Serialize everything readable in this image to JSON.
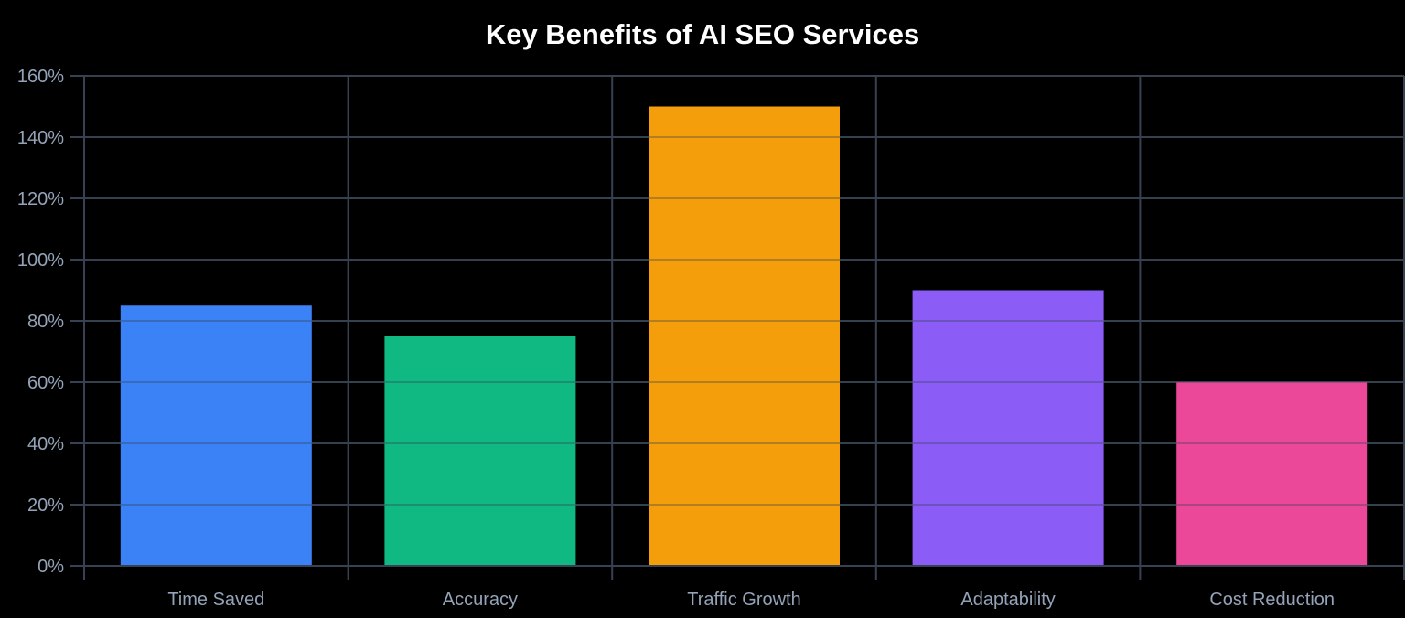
{
  "chart_data": {
    "type": "bar",
    "title": "Key Benefits of AI SEO Services",
    "categories": [
      "Time Saved",
      "Accuracy",
      "Traffic Growth",
      "Adaptability",
      "Cost Reduction"
    ],
    "values": [
      85,
      75,
      150,
      90,
      60
    ],
    "colors": [
      "#3b82f6",
      "#10b981",
      "#f59e0b",
      "#8b5cf6",
      "#ec4899"
    ],
    "xlabel": "",
    "ylabel": "",
    "ylim": [
      0,
      160
    ],
    "yticks": [
      "0%",
      "20%",
      "40%",
      "60%",
      "80%",
      "100%",
      "120%",
      "140%",
      "160%"
    ],
    "grid": true,
    "legend": false
  },
  "style": {
    "grid_color": "#374151",
    "tick_color": "#94a3b8",
    "background": "#000000"
  }
}
